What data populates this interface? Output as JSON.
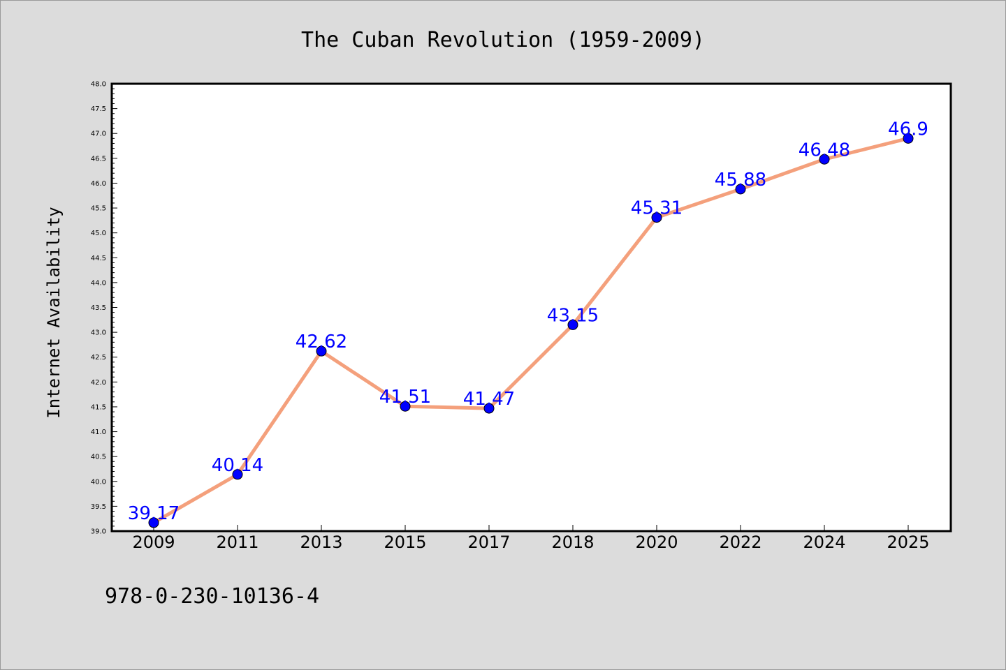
{
  "chart_data": {
    "type": "line",
    "title": "The Cuban Revolution (1959-2009)",
    "xlabel": "",
    "ylabel": "Internet Availability",
    "categories": [
      "2009",
      "2011",
      "2013",
      "2015",
      "2017",
      "2018",
      "2020",
      "2022",
      "2024",
      "2025"
    ],
    "series": [
      {
        "values": [
          39.17,
          40.14,
          42.62,
          41.51,
          41.47,
          43.15,
          45.31,
          45.88,
          46.48,
          46.9
        ],
        "labels": [
          "39.17",
          "40.14",
          "42.62",
          "41.51",
          "41.47",
          "43.15",
          "45.31",
          "45.88",
          "46.48",
          "46.9"
        ]
      }
    ],
    "ylim": [
      39.0,
      48.0
    ],
    "yticks": [
      "39.0",
      "39.5",
      "40.0",
      "40.5",
      "41.0",
      "41.5",
      "42.0",
      "42.5",
      "43.0",
      "43.5",
      "44.0",
      "44.5",
      "45.0",
      "45.5",
      "46.0",
      "46.5",
      "47.0",
      "47.5",
      "48.0"
    ],
    "grid": false,
    "line_color": "#f4a07c",
    "marker_color": "#0000ff",
    "label_color": "#0000ff",
    "background": "#dcdcdc",
    "plot_background": "#ffffff"
  },
  "footer": {
    "isbn": "978-0-230-10136-4"
  }
}
